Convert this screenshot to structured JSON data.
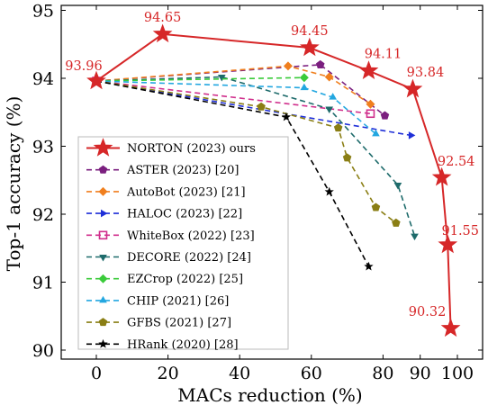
{
  "chart_data": {
    "type": "line",
    "title": "",
    "xlabel": "MACs reduction (%)",
    "ylabel": "Top-1 accuracy (%)",
    "xlim": [
      -8,
      104
    ],
    "ylim": [
      89.8,
      95.05
    ],
    "x_scale": "piecewise-compressed above 80",
    "x_ticks": [
      "0",
      "20",
      "40",
      "60",
      "80",
      "90",
      "100"
    ],
    "y_ticks": [
      "90",
      "91",
      "92",
      "93",
      "94",
      "95"
    ],
    "grid": false,
    "legend_position": "lower-left",
    "series": [
      {
        "name": "NORTON (2023) ours",
        "color": "#d62728",
        "marker": "star",
        "dashed": false,
        "x": [
          0,
          18.5,
          59.5,
          76,
          88,
          95.8,
          97.4,
          98.2
        ],
        "y": [
          93.96,
          94.65,
          94.45,
          94.11,
          93.84,
          92.54,
          91.55,
          90.32
        ],
        "labels": [
          "93.96",
          "94.65",
          "94.45",
          "94.11",
          "93.84",
          "92.54",
          "91.55",
          "90.32"
        ]
      },
      {
        "name": "ASTER (2023) [20]",
        "color": "#7b1f7f",
        "marker": "pentagon",
        "dashed": true,
        "x": [
          0,
          62.5,
          80.5
        ],
        "y": [
          93.96,
          94.2,
          93.45
        ]
      },
      {
        "name": "AutoBot (2023) [21]",
        "color": "#f07f1e",
        "marker": "diamond",
        "dashed": true,
        "x": [
          0,
          53.5,
          65,
          76.5
        ],
        "y": [
          93.96,
          94.18,
          94.02,
          93.62
        ]
      },
      {
        "name": "HALOC (2023) [22]",
        "color": "#1f2fd8",
        "marker": "triangle-right",
        "dashed": true,
        "x": [
          0,
          87.5
        ],
        "y": [
          93.96,
          93.16
        ]
      },
      {
        "name": "WhiteBox (2022) [23]",
        "color": "#d02f8c",
        "marker": "square-open",
        "dashed": true,
        "x": [
          0,
          76.5
        ],
        "y": [
          93.96,
          93.48
        ]
      },
      {
        "name": "DECORE (2022) [24]",
        "color": "#1e6b6b",
        "marker": "triangle-down",
        "dashed": true,
        "x": [
          0,
          35,
          65,
          84,
          88.5
        ],
        "y": [
          93.96,
          94.02,
          93.55,
          92.43,
          91.68
        ]
      },
      {
        "name": "EZCrop (2022) [25]",
        "color": "#3acb3a",
        "marker": "diamond",
        "dashed": true,
        "x": [
          0,
          58
        ],
        "y": [
          93.96,
          94.01
        ]
      },
      {
        "name": "CHIP (2021) [26]",
        "color": "#23a7e0",
        "marker": "triangle-up",
        "dashed": true,
        "x": [
          0,
          58,
          66,
          78
        ],
        "y": [
          93.96,
          93.86,
          93.72,
          93.18
        ]
      },
      {
        "name": "GFBS (2021) [27]",
        "color": "#8a7e14",
        "marker": "pentagon",
        "dashed": true,
        "x": [
          0,
          46,
          67.5,
          70,
          78,
          83.5
        ],
        "y": [
          93.96,
          93.58,
          93.27,
          92.83,
          92.1,
          91.87
        ]
      },
      {
        "name": "HRank (2020) [28]",
        "color": "#000000",
        "marker": "star-small",
        "dashed": true,
        "x": [
          0,
          53,
          65,
          76
        ],
        "y": [
          93.96,
          93.43,
          92.33,
          91.23
        ]
      }
    ]
  }
}
